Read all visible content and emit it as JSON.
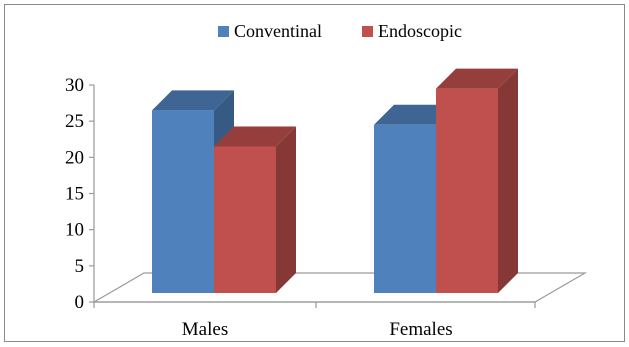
{
  "chart_data": {
    "type": "bar",
    "categories": [
      "Males",
      "Females"
    ],
    "series": [
      {
        "name": "Conventinal",
        "values": [
          26.5,
          24.5
        ],
        "color": "#4f81bd"
      },
      {
        "name": "Endoscopic",
        "values": [
          21.5,
          29.5
        ],
        "color": "#c0504d"
      }
    ],
    "title": "",
    "xlabel": "",
    "ylabel": "",
    "ylim": [
      0,
      30
    ],
    "yticks": [
      "0",
      "5",
      "10",
      "15",
      "20",
      "25",
      "30"
    ],
    "grid": false,
    "legend_position": "top"
  }
}
